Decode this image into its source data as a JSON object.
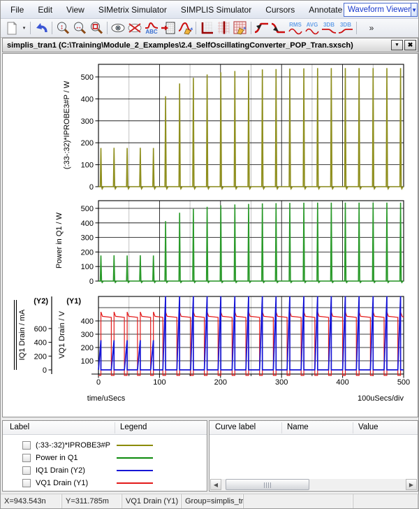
{
  "menu": {
    "items": [
      "File",
      "Edit",
      "View",
      "SIMetrix Simulator",
      "SIMPLIS Simulator",
      "Cursors",
      "Annotate"
    ],
    "overflow_chevrons": "»",
    "viewer_selector": {
      "value": "Waveform Viewer",
      "arrow": "▼"
    }
  },
  "toolbar": {
    "icon_names": [
      "new-graph-icon",
      "new-graph-caret-icon",
      "undo-icon",
      "zoom-y-icon",
      "zoom-x-icon",
      "zoom-area-icon",
      "show-curve-icon",
      "hide-curve-icon",
      "label-curve-icon",
      "move-curve-icon",
      "edit-curve-icon",
      "add-axis-icon",
      "add-grid-icon",
      "edit-grid-icon",
      "rising-edge-icon",
      "falling-edge-icon",
      "rms-icon",
      "avg-icon",
      "3db-lowpass-icon",
      "3db-highpass-icon",
      "more-tools-icon"
    ],
    "labels": {
      "rms": "RMS",
      "avg": "AVG",
      "db3": "3DB",
      "more": "»",
      "new_caret": "▾"
    }
  },
  "document": {
    "tab_title": "simplis_tran1 (C:\\Training\\Module_2_Examples\\2.4_SelfOscillatingConverter_POP_Tran.sxsch)",
    "restore_glyph": "▼",
    "close_glyph": "✖"
  },
  "chart_data": [
    {
      "type": "line",
      "name": "(:33-:32)*IPROBE3#P",
      "ylabel": "(:33-:32)*IPROBE3#P  / W",
      "unit": "W",
      "color": "#8f8f1e",
      "yticks": [
        0,
        100,
        200,
        300,
        400,
        500
      ],
      "ylim": [
        0,
        557
      ],
      "xlim": [
        0,
        500
      ],
      "pulse_times_us": [
        4,
        25.5,
        47,
        68.5,
        90,
        110,
        133,
        155.5,
        178,
        200.5,
        223.5,
        246,
        268.5,
        291,
        313.5,
        336.5,
        359,
        381.5,
        404.5,
        427,
        450,
        472.5,
        495
      ],
      "pulse_peaks": [
        176,
        177,
        176,
        177,
        176,
        412,
        470,
        496,
        511,
        521,
        527,
        531,
        534,
        536,
        538,
        539,
        540,
        540,
        540,
        540,
        540,
        540,
        540
      ],
      "baseline": 0
    },
    {
      "type": "line",
      "name": "Power in Q1",
      "ylabel": "Power in Q1 / W",
      "unit": "W",
      "color": "#2a9a2a",
      "yticks": [
        0,
        100,
        200,
        300,
        400,
        500
      ],
      "ylim": [
        0,
        552
      ],
      "xlim": [
        0,
        500
      ],
      "pulse_times_us": [
        4,
        25.5,
        47,
        68.5,
        90,
        110,
        133,
        155.5,
        178,
        200.5,
        223.5,
        246,
        268.5,
        291,
        313.5,
        336.5,
        359,
        381.5,
        404.5,
        427,
        450,
        472.5,
        495
      ],
      "pulse_peaks": [
        176,
        177,
        176,
        177,
        176,
        412,
        470,
        496,
        511,
        521,
        527,
        531,
        534,
        536,
        538,
        539,
        540,
        540,
        540,
        540,
        540,
        540,
        540
      ],
      "baseline": 0
    },
    {
      "type": "line",
      "xlabel": "time/uSecs",
      "xdiv": "100uSecs/div",
      "xticks": [
        0,
        100,
        200,
        300,
        400,
        500
      ],
      "xminor": [
        50,
        150,
        250,
        350,
        450
      ],
      "y1": {
        "tag": "(Y1)",
        "label": "VQ1 Drain / V",
        "ticks": [
          100,
          200,
          300,
          400
        ],
        "unit": "V"
      },
      "y2": {
        "tag": "(Y2)",
        "label": "IQ1 Drain / mA",
        "ticks": [
          0,
          200,
          400,
          600
        ],
        "unit": "mA"
      },
      "events_us": [
        4,
        25.5,
        47,
        68.5,
        90,
        110,
        133,
        155.5,
        178,
        200.5,
        223.5,
        246,
        268.5,
        291,
        313.5,
        336.5,
        359,
        381.5,
        404.5,
        427,
        450,
        472.5,
        495
      ],
      "series": [
        {
          "name": "IQ1 Drain (Y2)",
          "axis": "Y2",
          "color": "#1616d6",
          "unit": "mA",
          "ramp_peaks": [
            430,
            430,
            430,
            430,
            430,
            1070,
            1070,
            1070,
            1070,
            1070,
            1070,
            1070,
            1070,
            1070,
            1070,
            1070,
            1070,
            1070,
            1070,
            1070,
            1070,
            1070,
            1070
          ],
          "on_time_us": 4.5,
          "baseline": 0
        },
        {
          "name": "VQ1 Drain (Y1)",
          "axis": "Y1",
          "color": "#e31b1b",
          "unit": "V",
          "high_level": 435,
          "sag_level": 427,
          "overshoot": 468,
          "low_level": -10,
          "on_time_us": 4.5
        }
      ]
    }
  ],
  "legend_panel": {
    "columns": [
      "Label",
      "Legend"
    ],
    "rows": [
      {
        "label": "(:33-:32)*IPROBE3#P",
        "color": "#8b8b00",
        "checked": false
      },
      {
        "label": "Power in Q1",
        "color": "#0c8a0c",
        "checked": false
      },
      {
        "label": "IQ1 Drain (Y2)",
        "color": "#1616d6",
        "checked": false
      },
      {
        "label": "VQ1 Drain (Y1)",
        "color": "#e31b1b",
        "checked": false
      }
    ]
  },
  "curve_panel": {
    "columns": [
      "Curve label",
      "Name",
      "Value"
    ],
    "rows": []
  },
  "status_bar": {
    "sections": [
      "X=943.543n",
      "Y=311.785m",
      "VQ1 Drain (Y1)",
      "Group=simplis_tran1",
      "",
      ""
    ]
  }
}
